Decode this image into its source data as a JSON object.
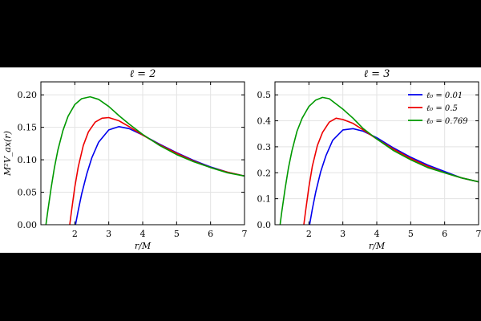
{
  "chart_data": [
    {
      "type": "line",
      "title": "ℓ = 2",
      "xlabel": "r/M",
      "ylabel": "M²V_ax(r)",
      "xlim": [
        1,
        7
      ],
      "ylim": [
        0,
        0.22
      ],
      "xticks": [
        2,
        3,
        4,
        5,
        6,
        7
      ],
      "xtick_labels": [
        "2",
        "3",
        "4",
        "5",
        "6",
        "7"
      ],
      "yticks": [
        0,
        0.05,
        0.1,
        0.15,
        0.2
      ],
      "ytick_labels": [
        "0.00",
        "0.05",
        "0.10",
        "0.15",
        "0.20"
      ],
      "grid": true,
      "series": [
        {
          "label": "ℓ₀ = 0.01",
          "color": "#0000ee",
          "x": [
            2.02,
            2.1,
            2.2,
            2.35,
            2.5,
            2.7,
            3.0,
            3.3,
            3.6,
            4.0,
            4.5,
            5.0,
            5.5,
            6.0,
            6.5,
            7.0
          ],
          "y": [
            0.0,
            0.022,
            0.047,
            0.078,
            0.103,
            0.127,
            0.146,
            0.151,
            0.148,
            0.138,
            0.124,
            0.111,
            0.099,
            0.089,
            0.081,
            0.075
          ]
        },
        {
          "label": "ℓ₀ = 0.5",
          "color": "#ee0000",
          "x": [
            1.85,
            1.9,
            2.0,
            2.1,
            2.25,
            2.4,
            2.6,
            2.8,
            3.0,
            3.3,
            3.6,
            4.0,
            4.5,
            5.0,
            5.5,
            6.0,
            6.5,
            7.0
          ],
          "y": [
            0.0,
            0.02,
            0.058,
            0.089,
            0.122,
            0.143,
            0.158,
            0.164,
            0.165,
            0.16,
            0.151,
            0.138,
            0.123,
            0.11,
            0.098,
            0.088,
            0.081,
            0.075
          ]
        },
        {
          "label": "ℓ₀ = 0.769",
          "color": "#009900",
          "x": [
            1.15,
            1.2,
            1.3,
            1.4,
            1.5,
            1.65,
            1.8,
            2.0,
            2.2,
            2.45,
            2.7,
            3.0,
            3.3,
            3.6,
            4.0,
            4.5,
            5.0,
            5.5,
            6.0,
            6.5,
            7.0
          ],
          "y": [
            0.0,
            0.02,
            0.056,
            0.088,
            0.115,
            0.145,
            0.167,
            0.185,
            0.194,
            0.197,
            0.193,
            0.182,
            0.168,
            0.155,
            0.139,
            0.122,
            0.108,
            0.097,
            0.088,
            0.08,
            0.075
          ]
        }
      ]
    },
    {
      "type": "line",
      "title": "ℓ = 3",
      "xlabel": "r/M",
      "xlim": [
        1,
        7
      ],
      "ylim": [
        0,
        0.55
      ],
      "xticks": [
        2,
        3,
        4,
        5,
        6,
        7
      ],
      "xtick_labels": [
        "2",
        "3",
        "4",
        "5",
        "6",
        "7"
      ],
      "yticks": [
        0,
        0.1,
        0.2,
        0.3,
        0.4,
        0.5
      ],
      "ytick_labels": [
        "0.0",
        "0.1",
        "0.2",
        "0.3",
        "0.4",
        "0.5"
      ],
      "grid": true,
      "legend": "top-right",
      "series": [
        {
          "label": "ℓ₀ = 0.01",
          "color": "#0000ee",
          "x": [
            2.02,
            2.1,
            2.2,
            2.35,
            2.5,
            2.7,
            3.0,
            3.3,
            3.6,
            4.0,
            4.5,
            5.0,
            5.5,
            6.0,
            6.5,
            7.0
          ],
          "y": [
            0.0,
            0.06,
            0.125,
            0.205,
            0.265,
            0.325,
            0.365,
            0.37,
            0.36,
            0.335,
            0.295,
            0.26,
            0.23,
            0.205,
            0.18,
            0.165
          ]
        },
        {
          "label": "ℓ₀ = 0.5",
          "color": "#ee0000",
          "x": [
            1.85,
            1.9,
            2.0,
            2.1,
            2.25,
            2.4,
            2.6,
            2.8,
            3.0,
            3.3,
            3.6,
            4.0,
            4.5,
            5.0,
            5.5,
            6.0,
            6.5,
            7.0
          ],
          "y": [
            0.0,
            0.05,
            0.145,
            0.225,
            0.305,
            0.355,
            0.395,
            0.41,
            0.405,
            0.39,
            0.365,
            0.33,
            0.29,
            0.255,
            0.225,
            0.2,
            0.18,
            0.165
          ]
        },
        {
          "label": "ℓ₀ = 0.769",
          "color": "#009900",
          "x": [
            1.15,
            1.2,
            1.3,
            1.4,
            1.5,
            1.65,
            1.8,
            2.0,
            2.2,
            2.4,
            2.6,
            3.0,
            3.3,
            3.6,
            4.0,
            4.5,
            5.0,
            5.5,
            6.0,
            6.5,
            7.0
          ],
          "y": [
            0.0,
            0.05,
            0.14,
            0.22,
            0.285,
            0.36,
            0.41,
            0.455,
            0.48,
            0.49,
            0.485,
            0.445,
            0.41,
            0.37,
            0.33,
            0.285,
            0.25,
            0.22,
            0.2,
            0.18,
            0.165
          ]
        }
      ]
    }
  ],
  "legend": [
    {
      "label": "ℓ₀ = 0.01",
      "color": "#0000ee"
    },
    {
      "label": "ℓ₀ = 0.5",
      "color": "#ee0000"
    },
    {
      "label": "ℓ₀ = 0.769",
      "color": "#009900"
    }
  ]
}
